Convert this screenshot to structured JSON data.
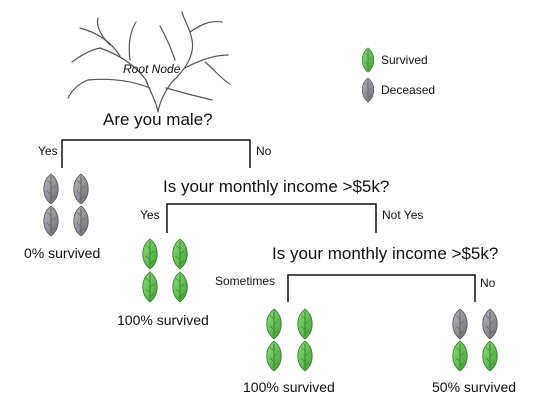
{
  "root": {
    "title": "Root Node"
  },
  "legend": {
    "survived": "Survived",
    "deceased": "Deceased"
  },
  "colors": {
    "survived": "#5fbf4a",
    "deceased": "#8f9096",
    "line": "#111111"
  },
  "icons": {
    "root": "bare-tree-icon",
    "survived": "green-leaf-icon",
    "deceased": "grey-leaf-icon"
  },
  "questions": {
    "q1": "Are you male?",
    "q2": "Is your monthly income >$5k?",
    "q3": "Is your monthly income >$5k?"
  },
  "branches": {
    "q1_left": "Yes",
    "q1_right": "No",
    "q2_left": "Yes",
    "q2_right": "Not Yes",
    "q3_left": "Sometimes",
    "q3_right": "No"
  },
  "results": {
    "male": "0% survived",
    "income_yes": "100% survived",
    "sometimes": "100% survived",
    "no": "50% survived"
  }
}
